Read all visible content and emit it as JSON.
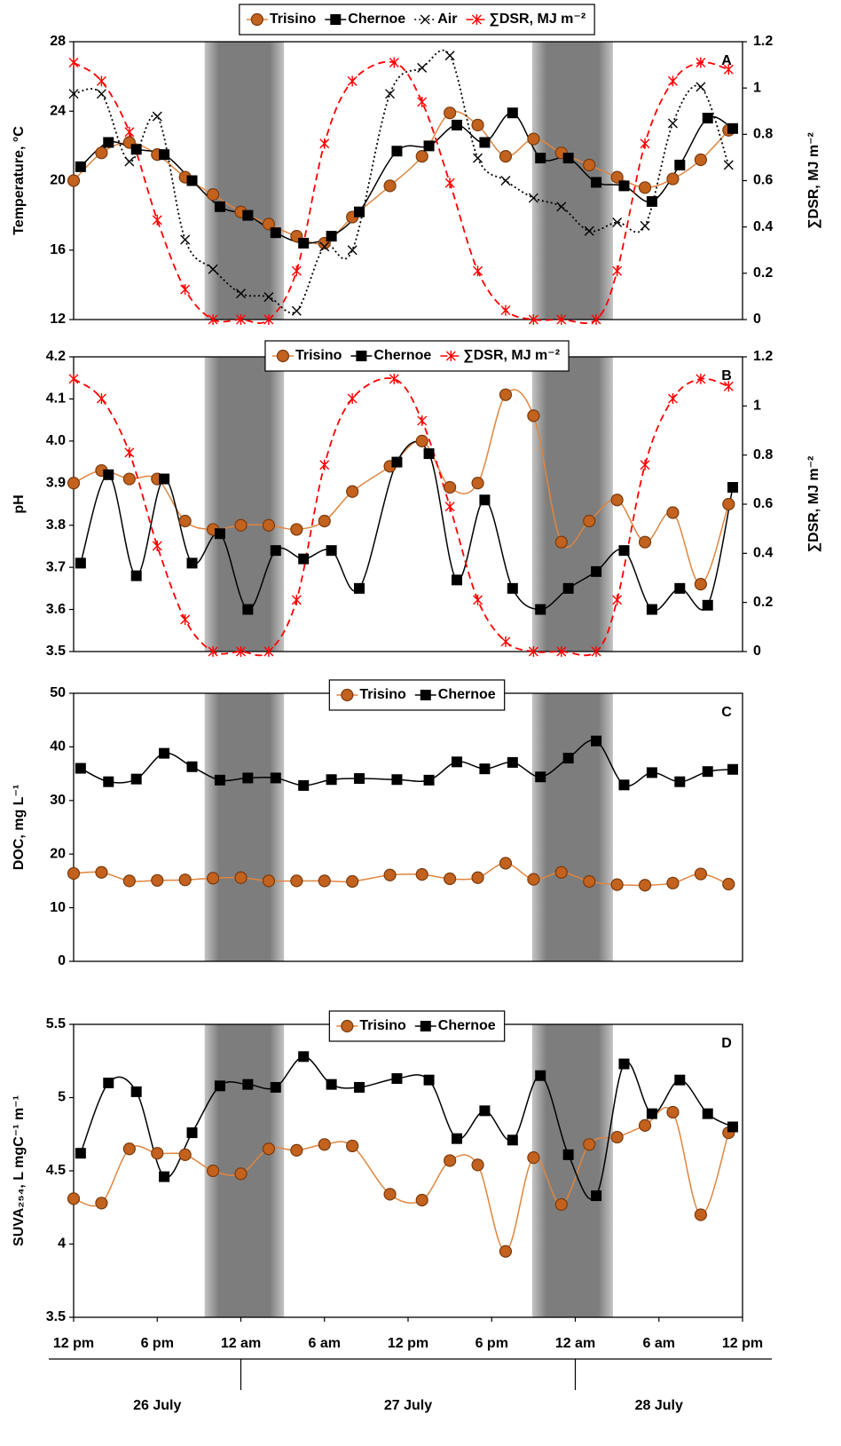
{
  "chart_data": [
    {
      "type": "line",
      "panel_label": "A",
      "ylabel": "Temperature, °C",
      "y2label": "∑DSR, MJ m⁻²",
      "xlim": [
        0,
        48
      ],
      "ylim": [
        12,
        28
      ],
      "yticks": [
        12,
        16,
        20,
        24,
        28
      ],
      "y2lim": [
        0,
        1.2
      ],
      "y2ticks": [
        0,
        0.2,
        0.4,
        0.6,
        0.8,
        1,
        1.2
      ],
      "shaded_regions": [
        [
          9.4,
          15.1
        ],
        [
          32.9,
          38.7
        ]
      ],
      "series": [
        {
          "name": "Trisino",
          "color": "#e0853f",
          "marker": "circle",
          "dash": "solid",
          "x": [
            0,
            2,
            4,
            6,
            8,
            10,
            12,
            14,
            16,
            18,
            20,
            22.7,
            25,
            27,
            29,
            31,
            33,
            35,
            37,
            39,
            41,
            43,
            45,
            47
          ],
          "values": [
            20.0,
            21.6,
            22.2,
            21.5,
            20.2,
            19.2,
            18.2,
            17.5,
            16.8,
            16.4,
            17.9,
            19.7,
            21.4,
            23.9,
            23.2,
            21.4,
            22.4,
            21.6,
            20.9,
            20.2,
            19.6,
            20.1,
            21.2,
            22.9
          ]
        },
        {
          "name": "Chernoe",
          "color": "#000000",
          "marker": "square",
          "dash": "solid",
          "x": [
            0.5,
            2.5,
            4.5,
            6.5,
            8.5,
            10.5,
            12.5,
            14.5,
            16.5,
            18.5,
            20.5,
            23.2,
            25.5,
            27.5,
            29.5,
            31.5,
            33.5,
            35.5,
            37.5,
            39.5,
            41.5,
            43.5,
            45.5,
            47.3
          ],
          "values": [
            20.8,
            22.2,
            21.8,
            21.5,
            20.0,
            18.5,
            18.0,
            17.0,
            16.4,
            16.8,
            18.2,
            21.7,
            22.0,
            23.2,
            22.2,
            23.9,
            21.3,
            21.3,
            19.9,
            19.7,
            18.8,
            20.9,
            23.6,
            23.0
          ]
        },
        {
          "name": "Air",
          "color": "#000000",
          "marker": "x",
          "dash": "dotted",
          "x": [
            0,
            2,
            4,
            6,
            8,
            10,
            12,
            14,
            16,
            18,
            20,
            22.7,
            25,
            27,
            29,
            31,
            33,
            35,
            37,
            39,
            41,
            43,
            45,
            47
          ],
          "values": [
            25.0,
            25.0,
            21.1,
            23.7,
            16.6,
            14.9,
            13.5,
            13.3,
            12.5,
            16.2,
            16.0,
            25.0,
            26.5,
            27.2,
            21.3,
            20.0,
            19.0,
            18.5,
            17.1,
            17.6,
            17.4,
            23.3,
            25.4,
            20.9
          ]
        },
        {
          "name": "∑DSR, MJ m⁻²",
          "color": "#ff0000",
          "marker": "asterisk",
          "dash": "dashed",
          "axis": "y2",
          "x": [
            0,
            2,
            4,
            6,
            8,
            10,
            12,
            14,
            16,
            18,
            20,
            23,
            25,
            27,
            29,
            31,
            33,
            35,
            37.5,
            39,
            41,
            43,
            45,
            47
          ],
          "values": [
            1.11,
            1.03,
            0.81,
            0.43,
            0.13,
            0,
            0,
            0,
            0.21,
            0.76,
            1.03,
            1.11,
            0.94,
            0.59,
            0.21,
            0.04,
            0,
            0,
            0,
            0.21,
            0.76,
            1.03,
            1.11,
            1.08
          ]
        }
      ]
    },
    {
      "type": "line",
      "panel_label": "B",
      "ylabel": "pH",
      "y2label": "∑DSR, MJ m⁻²",
      "xlim": [
        0,
        48
      ],
      "ylim": [
        3.5,
        4.2
      ],
      "yticks": [
        3.5,
        3.6,
        3.7,
        3.8,
        3.9,
        {
          "value": 4,
          "label": "4.0"
        },
        4.1,
        4.2
      ],
      "y2lim": [
        0,
        1.2
      ],
      "y2ticks": [
        0,
        0.2,
        0.4,
        0.6,
        0.8,
        1,
        1.2
      ],
      "shaded_regions": [
        [
          9.4,
          15.1
        ],
        [
          32.9,
          38.7
        ]
      ],
      "series": [
        {
          "name": "Trisino",
          "color": "#e0853f",
          "marker": "circle",
          "dash": "solid",
          "x": [
            0,
            2,
            4,
            6,
            8,
            10,
            12,
            14,
            16,
            18,
            20,
            22.7,
            25,
            27,
            29,
            31,
            33,
            35,
            37,
            39,
            41,
            43,
            45,
            47
          ],
          "values": [
            3.9,
            3.93,
            3.91,
            3.91,
            3.81,
            3.79,
            3.8,
            3.8,
            3.79,
            3.81,
            3.88,
            3.94,
            4.0,
            3.89,
            3.9,
            4.11,
            4.06,
            3.76,
            3.81,
            3.86,
            3.76,
            3.83,
            3.66,
            3.85
          ]
        },
        {
          "name": "Chernoe",
          "color": "#000000",
          "marker": "square",
          "dash": "solid",
          "x": [
            0.5,
            2.5,
            4.5,
            6.5,
            8.5,
            10.5,
            12.5,
            14.5,
            16.5,
            18.5,
            20.5,
            23.2,
            25.5,
            27.5,
            29.5,
            31.5,
            33.5,
            35.5,
            37.5,
            39.5,
            41.5,
            43.5,
            45.5,
            47.3
          ],
          "values": [
            3.71,
            3.92,
            3.68,
            3.91,
            3.71,
            3.78,
            3.6,
            3.74,
            3.72,
            3.74,
            3.65,
            3.95,
            3.97,
            3.67,
            3.86,
            3.65,
            3.6,
            3.65,
            3.69,
            3.74,
            3.6,
            3.65,
            3.61,
            3.89
          ]
        },
        {
          "name": "∑DSR, MJ m⁻²",
          "color": "#ff0000",
          "marker": "asterisk",
          "dash": "dashed",
          "axis": "y2",
          "x": [
            0,
            2,
            4,
            6,
            8,
            10,
            12,
            14,
            16,
            18,
            20,
            23,
            25,
            27,
            29,
            31,
            33,
            35,
            37.5,
            39,
            41,
            43,
            45,
            47
          ],
          "values": [
            1.11,
            1.03,
            0.81,
            0.43,
            0.13,
            0,
            0,
            0,
            0.21,
            0.76,
            1.03,
            1.11,
            0.94,
            0.59,
            0.21,
            0.04,
            0,
            0,
            0,
            0.21,
            0.76,
            1.03,
            1.11,
            1.08
          ]
        }
      ]
    },
    {
      "type": "line",
      "panel_label": "C",
      "ylabel": "DOC, mg L⁻¹",
      "xlim": [
        0,
        48
      ],
      "ylim": [
        0,
        50
      ],
      "yticks": [
        0,
        10,
        20,
        30,
        40,
        50
      ],
      "shaded_regions": [
        [
          9.4,
          15.1
        ],
        [
          32.9,
          38.7
        ]
      ],
      "series": [
        {
          "name": "Trisino",
          "color": "#e0853f",
          "marker": "circle",
          "dash": "solid",
          "x": [
            0,
            2,
            4,
            6,
            8,
            10,
            12,
            14,
            16,
            18,
            20,
            22.7,
            25,
            27,
            29,
            31,
            33,
            35,
            37,
            39,
            41,
            43,
            45,
            47
          ],
          "values": [
            16.4,
            16.6,
            15.0,
            15.1,
            15.2,
            15.5,
            15.6,
            15.0,
            15.0,
            15.0,
            14.9,
            16.1,
            16.2,
            15.4,
            15.6,
            18.3,
            15.3,
            16.6,
            14.9,
            14.3,
            14.2,
            14.6,
            16.3,
            14.4
          ]
        },
        {
          "name": "Chernoe",
          "color": "#000000",
          "marker": "square",
          "dash": "solid",
          "x": [
            0.5,
            2.5,
            4.5,
            6.5,
            8.5,
            10.5,
            12.5,
            14.5,
            16.5,
            18.5,
            20.5,
            23.2,
            25.5,
            27.5,
            29.5,
            31.5,
            33.5,
            35.5,
            37.5,
            39.5,
            41.5,
            43.5,
            45.5,
            47.3
          ],
          "values": [
            36.0,
            33.5,
            34.0,
            38.8,
            36.3,
            33.8,
            34.2,
            34.2,
            32.8,
            33.9,
            34.1,
            33.9,
            33.8,
            37.2,
            35.9,
            37.1,
            34.4,
            37.9,
            41.1,
            32.9,
            35.2,
            33.5,
            35.4,
            35.8
          ]
        }
      ]
    },
    {
      "type": "line",
      "panel_label": "D",
      "ylabel": "SUVA₂₅₄, L mgC⁻¹ m⁻¹",
      "xlim": [
        0,
        48
      ],
      "ylim": [
        3.5,
        5.5
      ],
      "yticks": [
        3.5,
        4,
        4.5,
        5,
        5.5
      ],
      "xticks": [
        {
          "value": 0,
          "label": "12 pm"
        },
        {
          "value": 6,
          "label": "6 pm"
        },
        {
          "value": 12,
          "label": "12 am"
        },
        {
          "value": 18,
          "label": "6 am"
        },
        {
          "value": 24,
          "label": "12 pm"
        },
        {
          "value": 30,
          "label": "6 pm"
        },
        {
          "value": 36,
          "label": "12 am"
        },
        {
          "value": 42,
          "label": "6 am"
        },
        {
          "value": 48,
          "label": "12 pm"
        }
      ],
      "x_groups": [
        {
          "label": "26 July",
          "from": 0,
          "to": 12
        },
        {
          "label": "27 July",
          "from": 12,
          "to": 36
        },
        {
          "label": "28 July",
          "from": 36,
          "to": 48
        }
      ],
      "shaded_regions": [
        [
          9.4,
          15.1
        ],
        [
          32.9,
          38.7
        ]
      ],
      "series": [
        {
          "name": "Trisino",
          "color": "#e0853f",
          "marker": "circle",
          "dash": "solid",
          "x": [
            0,
            2,
            4,
            6,
            8,
            10,
            12,
            14,
            16,
            18,
            20,
            22.7,
            25,
            27,
            29,
            31,
            33,
            35,
            37,
            39,
            41,
            43,
            45,
            47
          ],
          "values": [
            4.31,
            4.28,
            4.65,
            4.62,
            4.61,
            4.5,
            4.48,
            4.65,
            4.64,
            4.68,
            4.67,
            4.34,
            4.3,
            4.57,
            4.54,
            3.95,
            4.59,
            4.27,
            4.68,
            4.73,
            4.81,
            4.9,
            4.2,
            4.76
          ]
        },
        {
          "name": "Chernoe",
          "color": "#000000",
          "marker": "square",
          "dash": "solid",
          "x": [
            0.5,
            2.5,
            4.5,
            6.5,
            8.5,
            10.5,
            12.5,
            14.5,
            16.5,
            18.5,
            20.5,
            23.2,
            25.5,
            27.5,
            29.5,
            31.5,
            33.5,
            35.5,
            37.5,
            39.5,
            41.5,
            43.5,
            45.5,
            47.3
          ],
          "values": [
            4.62,
            5.1,
            5.04,
            4.46,
            4.76,
            5.08,
            5.09,
            5.07,
            5.28,
            5.09,
            5.07,
            5.13,
            5.12,
            4.72,
            4.91,
            4.71,
            5.15,
            4.61,
            4.33,
            5.23,
            4.89,
            5.12,
            4.89,
            4.8
          ]
        }
      ]
    }
  ]
}
